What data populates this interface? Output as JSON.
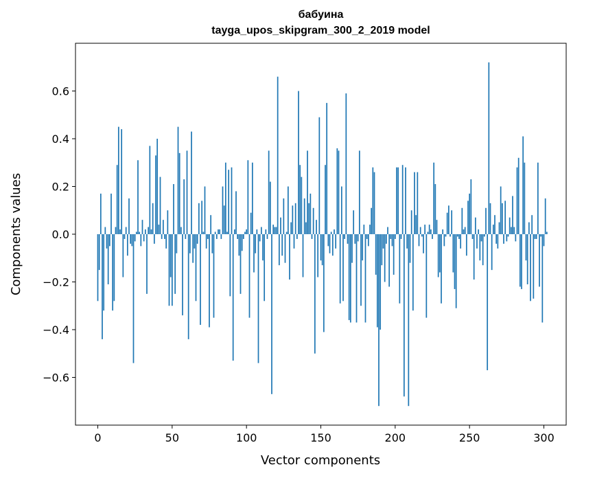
{
  "chart_data": {
    "type": "bar",
    "title": "бабуина",
    "subtitle": "tayga_upos_skipgram_300_2_2019 model",
    "xlabel": "Vector components",
    "ylabel": "Components values",
    "xlim": [
      -15,
      315
    ],
    "ylim": [
      -0.8,
      0.8
    ],
    "xticks": [
      0,
      50,
      100,
      150,
      200,
      250,
      300
    ],
    "yticks": [
      -0.6,
      -0.4,
      -0.2,
      0.0,
      0.2,
      0.4,
      0.6
    ],
    "ytick_labels": [
      "−0.6",
      "−0.4",
      "−0.2",
      "0.0",
      "0.2",
      "0.4",
      "0.6"
    ],
    "bar_color": "#1f77b4",
    "grid": false,
    "values": [
      -0.28,
      -0.15,
      0.17,
      -0.44,
      -0.32,
      0.03,
      -0.06,
      -0.21,
      -0.05,
      0.17,
      -0.32,
      -0.28,
      0.03,
      0.29,
      0.45,
      0.02,
      0.44,
      -0.18,
      -0.02,
      0.03,
      -0.09,
      0.15,
      -0.04,
      -0.05,
      -0.54,
      -0.03,
      0.01,
      0.31,
      0.01,
      -0.05,
      0.06,
      -0.03,
      0.02,
      -0.25,
      0.03,
      0.37,
      0.02,
      0.13,
      -0.04,
      0.33,
      0.4,
      0.04,
      0.24,
      -0.02,
      0.06,
      -0.02,
      -0.06,
      0.1,
      -0.3,
      -0.18,
      -0.3,
      0.21,
      -0.25,
      -0.08,
      0.45,
      0.34,
      0.03,
      -0.34,
      0.23,
      -0.02,
      0.35,
      -0.44,
      -0.08,
      0.43,
      -0.12,
      -0.06,
      -0.28,
      -0.04,
      0.13,
      -0.38,
      0.14,
      0.01,
      0.2,
      -0.06,
      -0.02,
      -0.39,
      0.08,
      -0.08,
      -0.35,
      0.01,
      -0.02,
      0.02,
      0.02,
      -0.02,
      0.2,
      0.12,
      0.3,
      0.01,
      0.27,
      -0.26,
      0.28,
      -0.53,
      0.02,
      0.18,
      -0.02,
      -0.09,
      -0.25,
      -0.07,
      -0.02,
      0.01,
      0.02,
      0.31,
      -0.35,
      0.09,
      0.3,
      -0.16,
      -0.08,
      0.02,
      -0.54,
      -0.03,
      0.03,
      -0.11,
      -0.28,
      0.02,
      -0.02,
      0.35,
      0.22,
      -0.67,
      0.04,
      0.03,
      0.03,
      0.66,
      -0.13,
      0.07,
      -0.09,
      0.15,
      -0.12,
      0.01,
      0.2,
      -0.19,
      0.05,
      0.12,
      -0.06,
      0.13,
      -0.02,
      0.6,
      0.29,
      0.24,
      -0.18,
      0.15,
      0.05,
      0.35,
      0.13,
      0.17,
      -0.02,
      0.11,
      -0.5,
      0.06,
      -0.18,
      0.49,
      -0.11,
      -0.13,
      -0.41,
      0.29,
      0.55,
      -0.05,
      -0.08,
      0.01,
      -0.09,
      0.02,
      -0.06,
      0.36,
      0.35,
      -0.29,
      0.2,
      -0.28,
      -0.02,
      0.59,
      -0.04,
      -0.36,
      -0.37,
      -0.12,
      0.1,
      -0.04,
      -0.37,
      -0.03,
      0.35,
      -0.3,
      -0.11,
      0.04,
      -0.37,
      -0.02,
      -0.05,
      0.04,
      0.11,
      0.28,
      0.26,
      -0.17,
      -0.39,
      -0.72,
      -0.4,
      -0.13,
      -0.06,
      -0.2,
      -0.04,
      0.03,
      -0.22,
      -0.02,
      -0.05,
      -0.17,
      -0.02,
      0.28,
      0.28,
      -0.29,
      -0.02,
      0.29,
      -0.68,
      0.28,
      -0.06,
      -0.72,
      -0.12,
      0.1,
      -0.32,
      0.26,
      0.08,
      0.26,
      -0.05,
      0.03,
      -0.01,
      -0.08,
      0.04,
      -0.35,
      0.01,
      0.04,
      0.02,
      -0.02,
      0.3,
      0.21,
      0.06,
      -0.18,
      -0.16,
      -0.29,
      0.02,
      -0.05,
      -0.01,
      0.09,
      0.12,
      -0.01,
      0.1,
      -0.16,
      -0.23,
      -0.31,
      -0.01,
      -0.02,
      -0.06,
      0.11,
      0.02,
      0.03,
      -0.09,
      0.14,
      0.17,
      0.23,
      -0.02,
      -0.19,
      0.07,
      -0.06,
      0.02,
      -0.11,
      -0.03,
      -0.13,
      -0.01,
      0.11,
      -0.57,
      0.72,
      0.13,
      -0.15,
      0.04,
      0.08,
      -0.04,
      -0.06,
      0.05,
      0.2,
      0.13,
      -0.04,
      0.14,
      -0.03,
      -0.01,
      0.07,
      0.03,
      0.16,
      0.03,
      -0.03,
      0.28,
      0.32,
      -0.22,
      -0.23,
      0.41,
      0.3,
      -0.11,
      -0.21,
      0.05,
      -0.28,
      0.08,
      -0.27,
      -0.02,
      -0.02,
      0.3,
      -0.22,
      -0.01,
      -0.37,
      -0.05,
      0.15,
      0.01
    ]
  }
}
